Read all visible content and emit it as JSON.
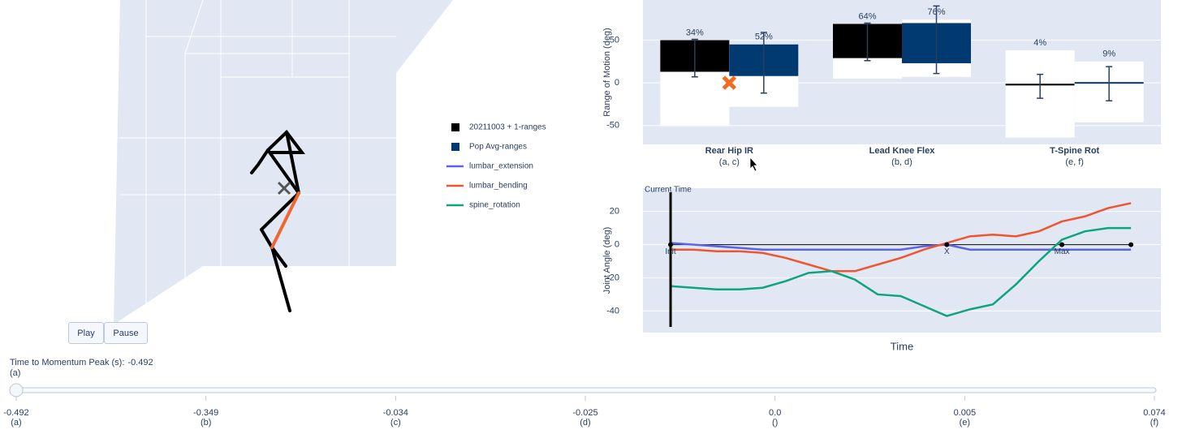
{
  "chart_data": [
    {
      "type": "range_bar",
      "y_title": "Range of Motion (deg)",
      "categories": [
        "Rear Hip IR",
        "Lead Knee Flex",
        "T-Spine Rot"
      ],
      "category_sublabels": [
        "(a, c)",
        "(b, d)",
        "(e, f)"
      ],
      "ylim": [
        -72,
        97
      ],
      "yticks": [
        -50,
        0,
        50
      ],
      "grid": true,
      "series": [
        {
          "name": "20211003 + 1-ranges",
          "color": "#000000",
          "values": [
            34,
            64,
            4
          ],
          "value_labels": [
            "34%",
            "64%",
            "4%"
          ],
          "range_low": [
            -50,
            5,
            -64
          ],
          "range_high": [
            50,
            69,
            38
          ],
          "low": [
            13,
            29,
            -3
          ],
          "high": [
            50,
            69,
            -1
          ],
          "err_low": [
            7,
            26,
            -18
          ],
          "err_high": [
            51,
            70,
            10
          ]
        },
        {
          "name": "Pop Avg-ranges",
          "color": "#003a70",
          "values": [
            52,
            76,
            9
          ],
          "value_labels": [
            "52%",
            "76%",
            "9%"
          ],
          "range_low": [
            -28,
            7,
            -46
          ],
          "range_high": [
            45,
            74,
            25
          ],
          "low": [
            8,
            23,
            0
          ],
          "high": [
            45,
            70,
            0
          ],
          "err_low": [
            -12,
            11,
            -21
          ],
          "err_high": [
            59,
            90,
            19
          ]
        }
      ],
      "marker_values": [
        0,
        null,
        null
      ],
      "marker_color": "#f26b21"
    },
    {
      "type": "line",
      "y_title": "Joint Angle (deg)",
      "x_title": "Time",
      "x": [
        0,
        1,
        2,
        3,
        4,
        5,
        6,
        7,
        8,
        9,
        10,
        11,
        12,
        13,
        14,
        15,
        16,
        17,
        18,
        19,
        20
      ],
      "xlim": [
        -1.2,
        21.3
      ],
      "ylim": [
        -53,
        34
      ],
      "yticks": [
        -40,
        -20,
        0,
        20
      ],
      "grid": true,
      "series": [
        {
          "name": "lumbar_extension",
          "color": "#5b63e8",
          "values": [
            1,
            0,
            -1,
            -2,
            -3,
            -3,
            -3,
            -3,
            -3,
            -3,
            -3,
            -1,
            0,
            -3,
            -3,
            -3,
            -3,
            -3,
            -3,
            -3,
            -3
          ]
        },
        {
          "name": "lumbar_bending",
          "color": "#f0552f",
          "values": [
            -3,
            -3,
            -4,
            -4,
            -5,
            -8,
            -12,
            -16,
            -16,
            -12,
            -8,
            -3,
            1,
            5,
            6,
            5,
            8,
            14,
            17,
            22,
            25
          ]
        },
        {
          "name": "spine_rotation",
          "color": "#10a37f",
          "values": [
            -25,
            -26,
            -27,
            -27,
            -26,
            -22,
            -17,
            -16,
            -21,
            -30,
            -31,
            -37,
            -43,
            -39,
            -36,
            -24,
            -10,
            3,
            8,
            10,
            10
          ]
        }
      ],
      "current_time": {
        "label": "Current Time",
        "x": 0
      },
      "events": {
        "labels": [
          "Init",
          "X",
          "Max",
          null
        ],
        "x": [
          0,
          12,
          17,
          20
        ],
        "y": [
          0,
          0,
          0,
          0
        ]
      }
    }
  ],
  "controls": {
    "buttons": [
      "Play",
      "Pause"
    ]
  },
  "slider": {
    "prefix": "Time to Momentum Peak (s):",
    "current": "-0.492",
    "current_sub": "(a)",
    "steps": [
      {
        "label": "-0.492",
        "sub": "(a)"
      },
      {
        "label": "-0.349",
        "sub": "(b)"
      },
      {
        "label": "-0.034",
        "sub": "(c)"
      },
      {
        "label": "-0.025",
        "sub": "(d)"
      },
      {
        "label": "0.0",
        "sub": "()"
      },
      {
        "label": "0.005",
        "sub": "(e)"
      },
      {
        "label": "0.074",
        "sub": "(f)"
      }
    ]
  }
}
